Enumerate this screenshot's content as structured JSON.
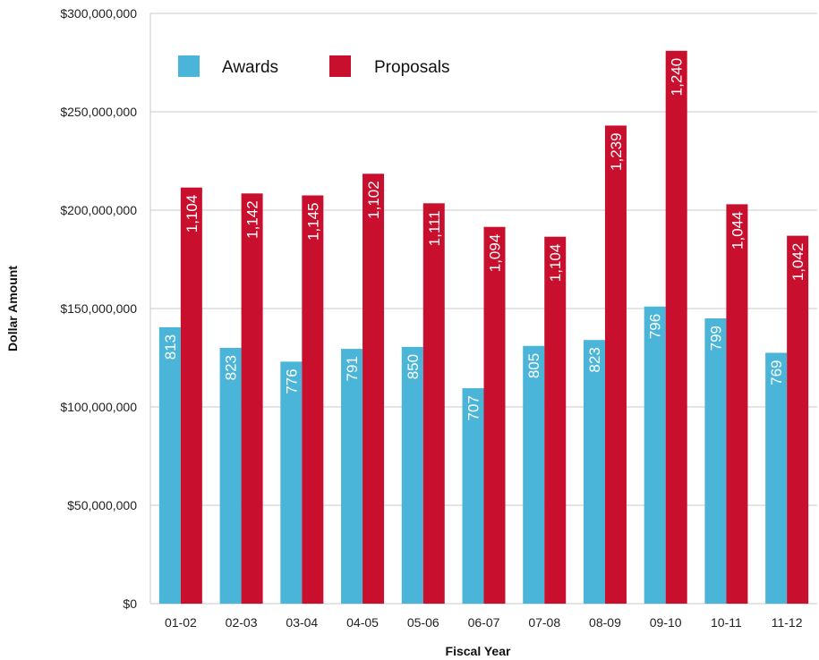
{
  "chart_data": {
    "type": "bar",
    "title": "",
    "xlabel": "Fiscal Year",
    "ylabel": "Dollar Amount",
    "categories": [
      "01-02",
      "02-03",
      "03-04",
      "04-05",
      "05-06",
      "06-07",
      "07-08",
      "08-09",
      "09-10",
      "10-11",
      "11-12"
    ],
    "ylim": [
      0,
      300000000
    ],
    "y_ticks": [
      0,
      50000000,
      100000000,
      150000000,
      200000000,
      250000000,
      300000000
    ],
    "y_tick_labels": [
      "$0",
      "$50,000,000",
      "$100,000,000",
      "$150,000,000",
      "$200,000,000",
      "$250,000,000",
      "$300,000,000"
    ],
    "grid": true,
    "legend_position": "top-left",
    "series": [
      {
        "name": "Awards",
        "color": "#4ab5d8",
        "values": [
          140500000,
          130000000,
          123000000,
          129500000,
          130500000,
          109500000,
          131000000,
          134000000,
          151000000,
          145000000,
          127500000
        ],
        "labels": [
          "813",
          "823",
          "776",
          "791",
          "850",
          "707",
          "805",
          "823",
          "796",
          "799",
          "769"
        ]
      },
      {
        "name": "Proposals",
        "color": "#c8102e",
        "values": [
          211500000,
          208500000,
          207500000,
          218500000,
          203500000,
          191500000,
          186500000,
          243000000,
          281000000,
          203000000,
          187000000
        ],
        "labels": [
          "1,104",
          "1,142",
          "1,145",
          "1,102",
          "1,111",
          "1,094",
          "1,104",
          "1,239",
          "1,240",
          "1,044",
          "1,042"
        ]
      }
    ]
  }
}
